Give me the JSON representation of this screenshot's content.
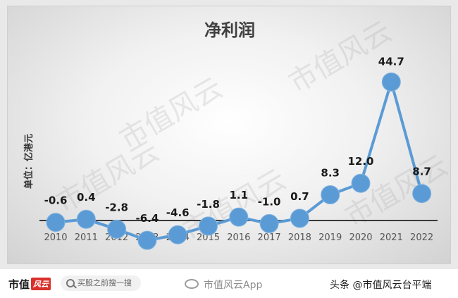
{
  "chart_data": {
    "type": "line",
    "title": "净利润",
    "ylabel": "单位：亿港元",
    "categories": [
      "2010",
      "2011",
      "2012",
      "2013",
      "2014",
      "2015",
      "2016",
      "2017",
      "2018",
      "2019",
      "2020",
      "2021",
      "2022"
    ],
    "values": [
      -0.6,
      0.4,
      -2.8,
      -6.4,
      -4.6,
      -1.8,
      1.1,
      -1.0,
      0.7,
      8.3,
      12.0,
      44.7,
      8.7
    ],
    "data_labels": [
      "-0.6",
      "0.4",
      "-2.8",
      "-6.4",
      "-4.6",
      "-1.8",
      "1.1",
      "-1.0",
      "0.7",
      "8.3",
      "12.0",
      "44.7",
      "8.7"
    ],
    "ylim": [
      -8,
      50
    ],
    "grid": false,
    "legend": "none",
    "colors": {
      "line": "#5b9bd5",
      "marker": "#5b9bd5",
      "axis": "#3a3a3a"
    }
  },
  "watermark": "市值风云",
  "footer": {
    "brand_main": "市值",
    "brand_accent": "风云",
    "search_text": "买股之前搜一搜",
    "weibo_text": "市值风云App",
    "toutiao_text": "头条 @市值风云台平端"
  }
}
